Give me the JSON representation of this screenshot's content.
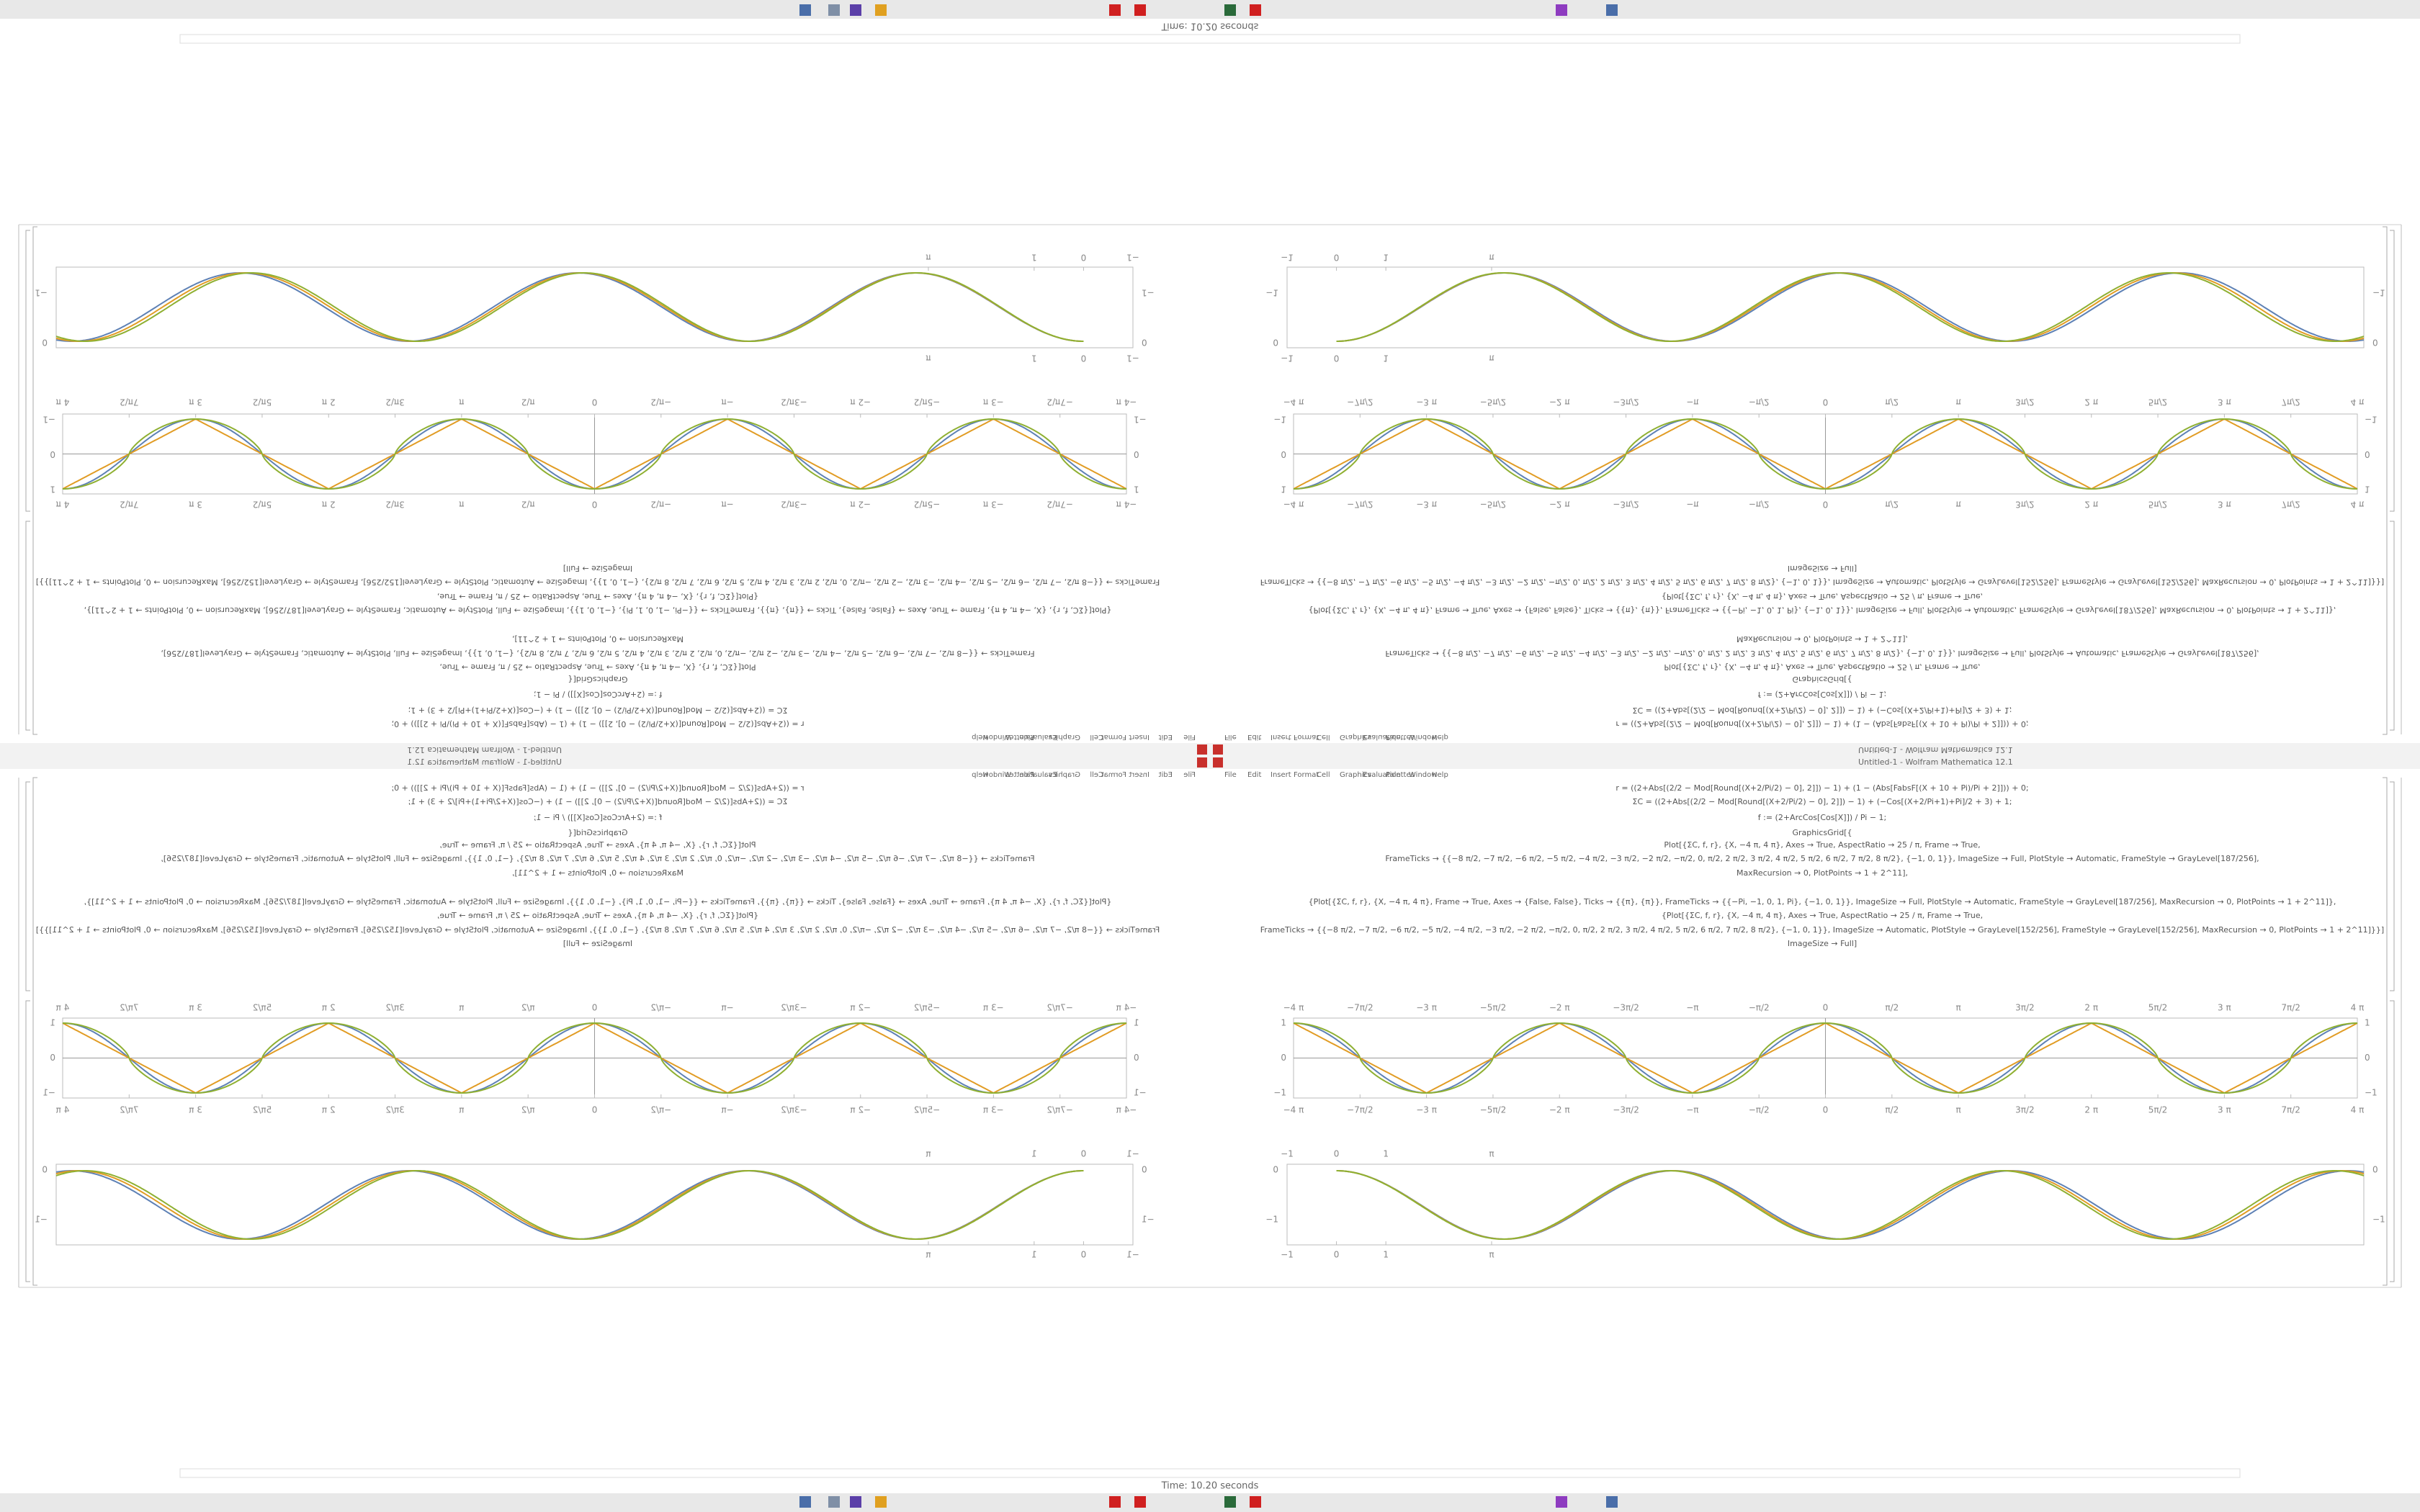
{
  "window": {
    "title": "Untitled-1 - Wolfram Mathematica 12.1",
    "status": "Time: 10.20 seconds"
  },
  "menu": [
    "File",
    "Edit",
    "Insert",
    "Format",
    "Cell",
    "Graphics",
    "Evaluation",
    "Palettes",
    "Window",
    "Help"
  ],
  "code": [
    "r = ((2+Abs[(2/2 − Mod[Round[(X+2/Pi/2) − 0], 2]]) − 1) + (1 − (Abs[FabsF[(X + 10 + Pi)/Pi + 2]])) + 0;",
    "ΣC = ((2+Abs[(2/2 − Mod[Round[(X+2/Pi/2) − 0], 2]]) − 1) + (−Cos[(X+2/Pi+1)+Pi]/2 + 3) + 1;",
    "f := (2+ArcCos[Cos[X]]) / Pi − 1;",
    "GraphicsGrid[{",
    "Plot[{ΣC, f, r}, {X, −4 π, 4 π}, Axes → True, AspectRatio → 25 / π, Frame → True,",
    "FrameTicks → {{−8 π/2, −7 π/2, −6 π/2, −5 π/2, −4 π/2, −3 π/2, −2 π/2, −π/2, 0, π/2, 2 π/2, 3 π/2, 4 π/2, 5 π/2, 6 π/2, 7 π/2, 8 π/2}, {−1, 0, 1}}, ImageSize → Full, PlotStyle → Automatic, FrameStyle → GrayLevel[187/256],",
    "MaxRecursion → 0, PlotPoints → 1 + 2^11],",
    "{Plot[{ΣC, f, r}, {X, −4 π, 4 π}, Frame → True, Axes → {False, False}, Ticks → {{π}, {π}}, FrameTicks → {{−Pi, −1, 0, 1, Pi}, {−1, 0, 1}}, ImageSize → Full, PlotStyle → Automatic, FrameStyle → GrayLevel[187/256], MaxRecursion → 0, PlotPoints → 1 + 2^11]},",
    "{Plot[{ΣC, f, r}, {X, −4 π, 4 π}, Axes → True, AspectRatio → 25 / π, Frame → True,",
    "FrameTicks → {{−8 π/2, −7 π/2, −6 π/2, −5 π/2, −4 π/2, −3 π/2, −2 π/2, −π/2, 0, π/2, 2 π/2, 3 π/2, 4 π/2, 5 π/2, 6 π/2, 7 π/2, 8 π/2}, {−1, 0, 1}}, ImageSize → Automatic, PlotStyle → GrayLevel[152/256], FrameStyle → GrayLevel[152/256], MaxRecursion → 0, PlotPoints → 1 + 2^11]}}]",
    "ImageSize → Full]"
  ],
  "plot_1": {
    "x_ticks": [
      "−4 π",
      "−7π/2",
      "−3 π",
      "−5π/2",
      "−2 π",
      "−3π/2",
      "−π",
      "−π/2",
      "0",
      "π/2",
      "π",
      "3π/2",
      "2 π",
      "5π/2",
      "3 π",
      "7π/2",
      "4 π"
    ],
    "y_ticks": [
      "−1",
      "0",
      "1"
    ]
  },
  "plot_2": {
    "x_ticks": [
      "−1",
      "0",
      "1",
      "π"
    ],
    "y_ticks": [
      "0",
      "−1"
    ]
  }
}
